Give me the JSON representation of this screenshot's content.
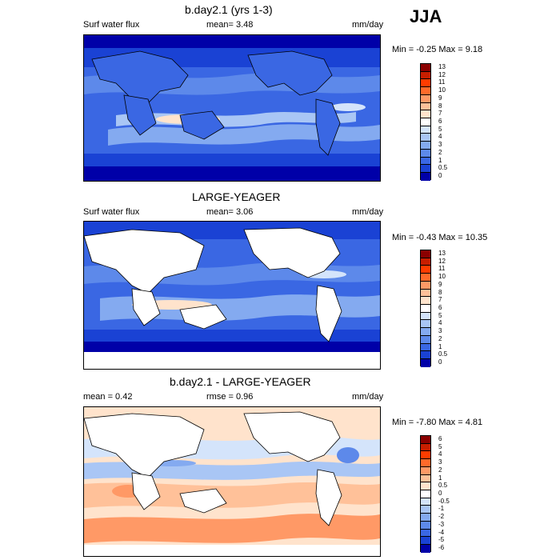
{
  "season": "JJA",
  "panels": [
    {
      "title": "b.day2.1 (yrs 1-3)",
      "left_label": "Surf water flux",
      "mean_label": "mean=  3.48",
      "units": "mm/day",
      "minmax": "Min = -0.25 Max =  9.18",
      "cbar_labels": [
        "13",
        "12",
        "11",
        "10",
        "9",
        "8",
        "7",
        "6",
        "5",
        "4",
        "3",
        "2",
        "1",
        "0.5",
        "0"
      ],
      "cbar_colors": [
        "#8b0000",
        "#c81e00",
        "#ff3c00",
        "#ff6a2a",
        "#ff9966",
        "#ffc199",
        "#ffe3cc",
        "#ffffff",
        "#d4e4fb",
        "#a9c6f5",
        "#84aaf0",
        "#5d89ea",
        "#3a67e3",
        "#1a42d4",
        "#0000a8"
      ]
    },
    {
      "title": "LARGE-YEAGER",
      "left_label": "Surf water flux",
      "mean_label": "mean=  3.06",
      "units": "mm/day",
      "minmax": "Min = -0.43 Max =  10.35",
      "cbar_labels": [
        "13",
        "12",
        "11",
        "10",
        "9",
        "8",
        "7",
        "6",
        "5",
        "4",
        "3",
        "2",
        "1",
        "0.5",
        "0"
      ],
      "cbar_colors": [
        "#8b0000",
        "#c81e00",
        "#ff3c00",
        "#ff6a2a",
        "#ff9966",
        "#ffc199",
        "#ffe3cc",
        "#ffffff",
        "#d4e4fb",
        "#a9c6f5",
        "#84aaf0",
        "#5d89ea",
        "#3a67e3",
        "#1a42d4",
        "#0000a8"
      ]
    },
    {
      "title": "b.day2.1 - LARGE-YEAGER",
      "left_label": "mean =   0.42",
      "mean_label": "rmse =   0.96",
      "units": "mm/day",
      "minmax": "Min = -7.80 Max =  4.81",
      "cbar_labels": [
        "6",
        "5",
        "4",
        "3",
        "2",
        "1",
        "0.5",
        "0",
        "-0.5",
        "-1",
        "-2",
        "-3",
        "-4",
        "-5",
        "-6"
      ],
      "cbar_colors": [
        "#8b0000",
        "#c81e00",
        "#ff3c00",
        "#ff6a2a",
        "#ff9966",
        "#ffc199",
        "#ffe3cc",
        "#ffffff",
        "#d4e4fb",
        "#a9c6f5",
        "#84aaf0",
        "#5d89ea",
        "#3a67e3",
        "#1a42d4",
        "#0000a8"
      ]
    }
  ]
}
